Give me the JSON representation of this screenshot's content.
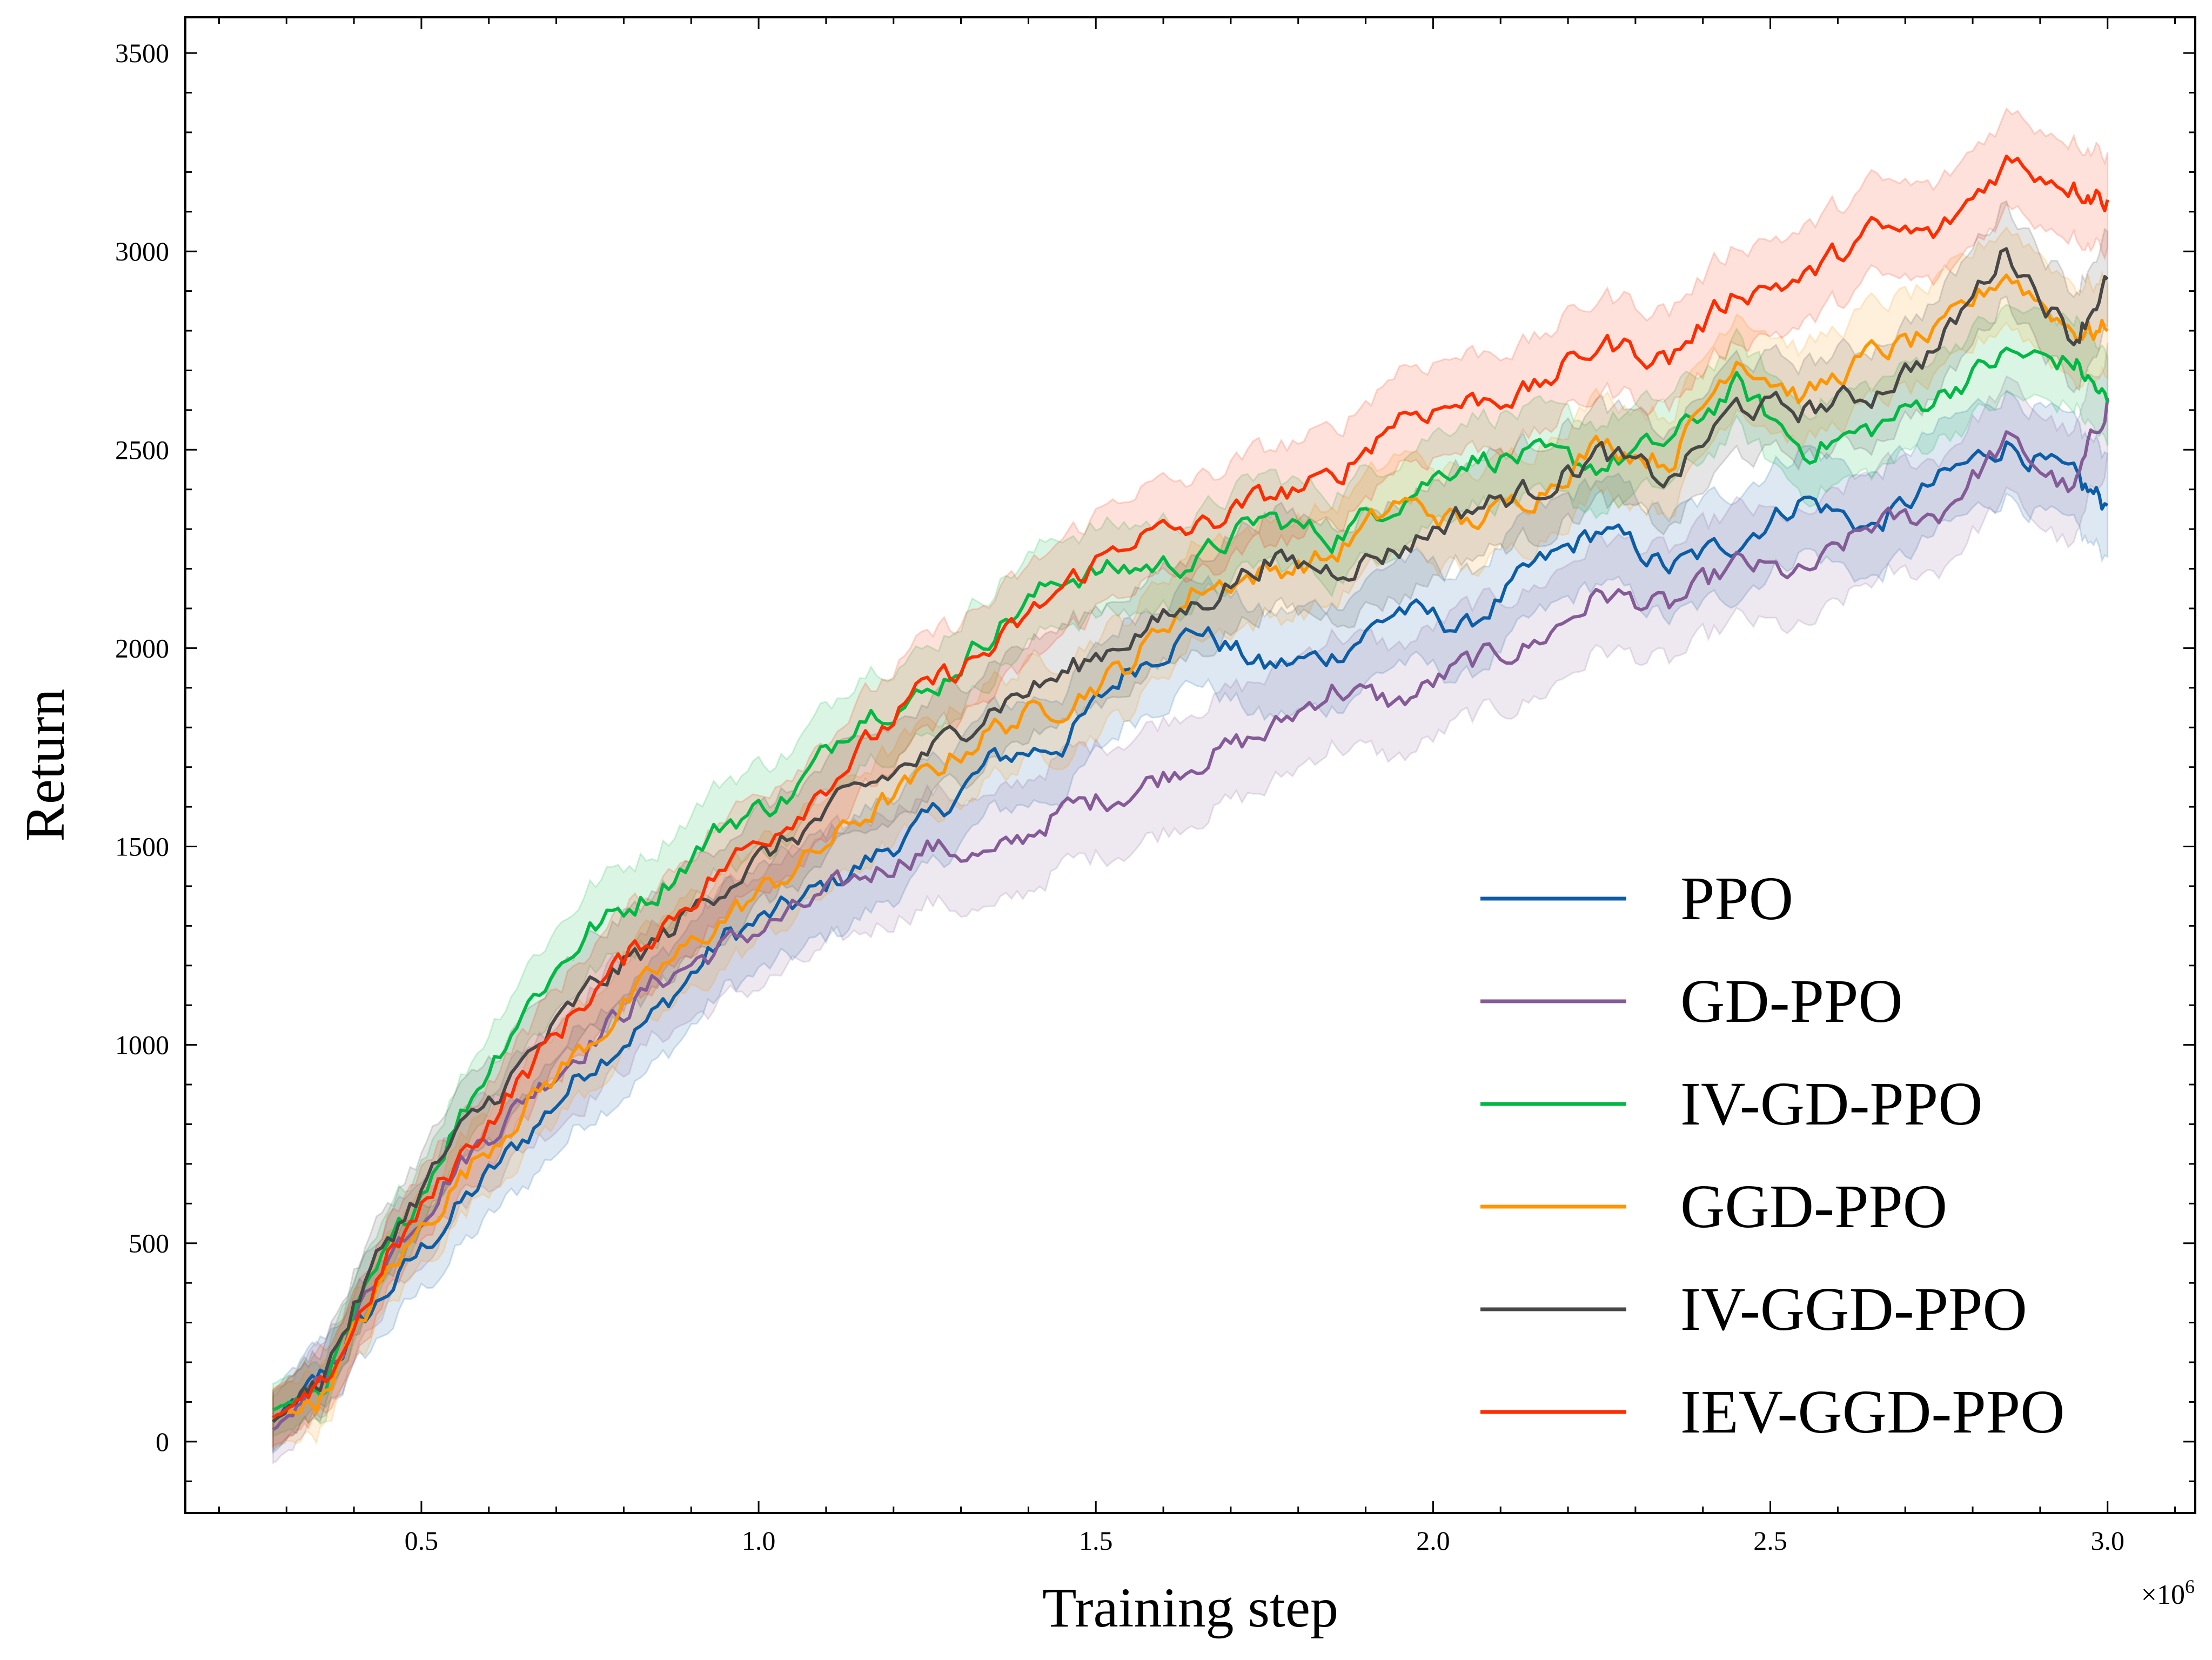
{
  "chart_data": {
    "type": "line",
    "xlabel": "Training step",
    "ylabel": "Return",
    "x_multiplier_label": "×10",
    "x_multiplier_exp": "6",
    "xlim": [
      0.15,
      3.13
    ],
    "ylim": [
      -180,
      3590
    ],
    "x_ticks": [
      0.5,
      1.0,
      1.5,
      2.0,
      2.5,
      3.0
    ],
    "x_tick_labels": [
      "0.5",
      "1.0",
      "1.5",
      "2.0",
      "2.5",
      "3.0"
    ],
    "x_minor_step": 0.1,
    "y_ticks": [
      0,
      500,
      1000,
      1500,
      2000,
      2500,
      3000,
      3500
    ],
    "y_tick_labels": [
      "0",
      "500",
      "1000",
      "1500",
      "2000",
      "2500",
      "3000",
      "3500"
    ],
    "y_minor_step": 100,
    "grid": false,
    "legend_position": "lower-right",
    "x": [
      0.28,
      0.35,
      0.45,
      0.55,
      0.65,
      0.75,
      0.85,
      0.95,
      1.05,
      1.15,
      1.25,
      1.35,
      1.45,
      1.55,
      1.65,
      1.75,
      1.85,
      1.95,
      2.05,
      2.15,
      2.25,
      2.35,
      2.45,
      2.55,
      2.65,
      2.75,
      2.85,
      2.95,
      3.0
    ],
    "series": [
      {
        "name": "PPO",
        "color": "#0C5DA5",
        "band": 130,
        "values": [
          50,
          160,
          380,
          580,
          760,
          950,
          1080,
          1270,
          1350,
          1450,
          1560,
          1720,
          1760,
          1950,
          2050,
          1950,
          1980,
          2100,
          2050,
          2200,
          2300,
          2200,
          2270,
          2380,
          2300,
          2420,
          2520,
          2420,
          2360
        ]
      },
      {
        "name": "GD-PPO",
        "color": "#845B97",
        "band": 140,
        "values": [
          30,
          140,
          470,
          690,
          860,
          1010,
          1160,
          1250,
          1330,
          1420,
          1500,
          1470,
          1590,
          1640,
          1720,
          1780,
          1900,
          1860,
          1960,
          2010,
          2140,
          2100,
          2210,
          2180,
          2310,
          2340,
          2520,
          2390,
          2630
        ]
      },
      {
        "name": "IV-GD-PPO",
        "color": "#00B945",
        "band": 110,
        "values": [
          80,
          130,
          470,
          800,
          1090,
          1290,
          1390,
          1560,
          1630,
          1840,
          1880,
          2050,
          2180,
          2200,
          2220,
          2330,
          2280,
          2380,
          2480,
          2480,
          2460,
          2520,
          2660,
          2500,
          2550,
          2640,
          2740,
          2720,
          2620
        ]
      },
      {
        "name": "GGD-PPO",
        "color": "#FF9500",
        "band": 120,
        "values": [
          60,
          110,
          420,
          650,
          840,
          1010,
          1180,
          1320,
          1440,
          1570,
          1680,
          1800,
          1860,
          1960,
          2150,
          2190,
          2230,
          2370,
          2310,
          2390,
          2520,
          2470,
          2740,
          2630,
          2740,
          2790,
          2950,
          2800,
          2800
        ]
      },
      {
        "name": "IV-GGD-PPO",
        "color": "#474747",
        "band": 120,
        "values": [
          50,
          160,
          510,
          760,
          950,
          1140,
          1260,
          1410,
          1520,
          1640,
          1730,
          1860,
          1930,
          2030,
          2110,
          2220,
          2200,
          2250,
          2350,
          2400,
          2490,
          2420,
          2610,
          2600,
          2640,
          2760,
          3010,
          2780,
          2930
        ]
      },
      {
        "name": "IEV-GGD-PPO",
        "color": "#FF2C00",
        "band": 120,
        "values": [
          60,
          120,
          460,
          700,
          920,
          1130,
          1290,
          1450,
          1580,
          1740,
          1900,
          2000,
          2150,
          2280,
          2300,
          2380,
          2420,
          2590,
          2620,
          2650,
          2770,
          2730,
          2900,
          2930,
          3050,
          3040,
          3230,
          3170,
          3130
        ]
      }
    ]
  }
}
